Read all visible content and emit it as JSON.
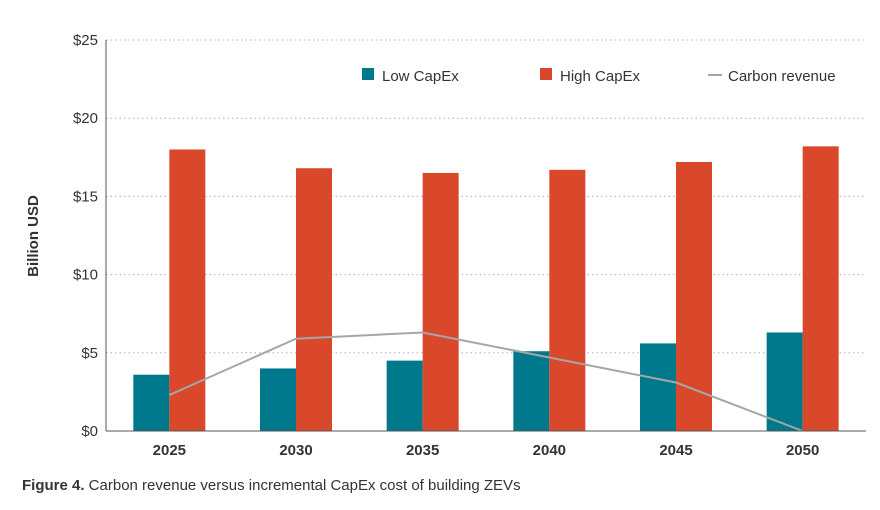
{
  "caption": {
    "figure_label": "Figure 4.",
    "text": " Carbon revenue versus incremental CapEx cost of building ZEVs"
  },
  "chart_data": {
    "type": "bar",
    "categories": [
      "2025",
      "2030",
      "2035",
      "2040",
      "2045",
      "2050"
    ],
    "series": [
      {
        "name": "Low CapEx",
        "kind": "bar",
        "color": "#00788c",
        "values": [
          3.6,
          4.0,
          4.5,
          5.1,
          5.6,
          6.3
        ]
      },
      {
        "name": "High CapEx",
        "kind": "bar",
        "color": "#d9482b",
        "values": [
          18.0,
          16.8,
          16.5,
          16.7,
          17.2,
          18.2
        ]
      },
      {
        "name": "Carbon revenue",
        "kind": "line",
        "color": "#a6a6a6",
        "values": [
          2.3,
          5.9,
          6.3,
          4.7,
          3.1,
          0.0
        ]
      }
    ],
    "ylabel": "Billion USD",
    "xlabel": "",
    "ylim": [
      0,
      25
    ],
    "yticks": [
      0,
      5,
      10,
      15,
      20,
      25
    ],
    "ytick_labels": [
      "$0",
      "$5",
      "$10",
      "$15",
      "$20",
      "$25"
    ],
    "grid": "horizontal dotted",
    "legend_position": "top-right"
  }
}
